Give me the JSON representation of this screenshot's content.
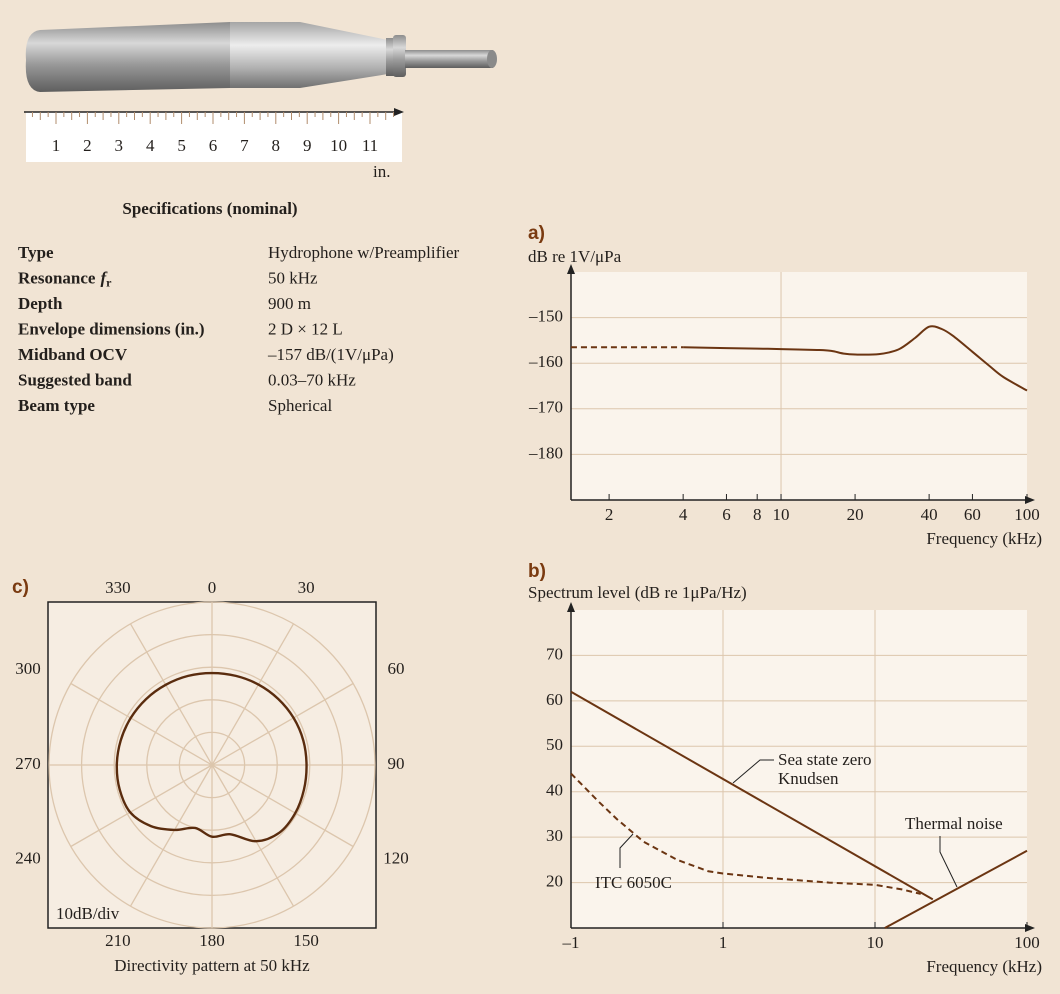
{
  "ruler": {
    "ticks": [
      1,
      2,
      3,
      4,
      5,
      6,
      7,
      8,
      9,
      10,
      11
    ],
    "unit": "in."
  },
  "specs": {
    "title": "Specifications (nominal)",
    "rows": [
      {
        "label": "Type",
        "value": "Hydrophone w/Preamplifier"
      },
      {
        "label": "Resonance",
        "symbol": "f",
        "subscript": "r",
        "value": "50 kHz"
      },
      {
        "label": "Depth",
        "value": "900 m"
      },
      {
        "label": "Envelope dimensions (in.)",
        "value": "2 D × 12 L"
      },
      {
        "label": "Midband OCV",
        "value": "–157 dB/(1V/μPa)"
      },
      {
        "label": "Suggested band",
        "value": "0.03–70 kHz"
      },
      {
        "label": "Beam type",
        "value": "Spherical"
      }
    ]
  },
  "chart_data": [
    {
      "type": "line",
      "panel": "a)",
      "ylabel": "dB re 1V/μPa",
      "xlabel": "Frequency (kHz)",
      "xscale": "log",
      "xlim": [
        1.4,
        100
      ],
      "xticks": [
        2,
        4,
        6,
        8,
        10,
        20,
        40,
        60,
        100
      ],
      "xgrid": [
        10
      ],
      "ylim": [
        -190,
        -140
      ],
      "yticks": [
        {
          "value": -150,
          "label": "–150"
        },
        {
          "value": -160,
          "label": "–160"
        },
        {
          "value": -170,
          "label": "–170"
        },
        {
          "value": -180,
          "label": "–180"
        }
      ],
      "grid": true,
      "series": [
        {
          "color": "#6b3512",
          "dashed": true,
          "x": [
            1.4,
            2,
            3,
            4
          ],
          "values": [
            -156.5,
            -156.5,
            -156.5,
            -156.5
          ]
        },
        {
          "color": "#6b3512",
          "dashed": false,
          "x": [
            4,
            6,
            8,
            10,
            14,
            16,
            18,
            20,
            25,
            30,
            35,
            40,
            45,
            50,
            60,
            70,
            80,
            100
          ],
          "values": [
            -156.5,
            -156.7,
            -156.8,
            -156.9,
            -157.1,
            -157.3,
            -157.9,
            -158.1,
            -158,
            -157,
            -154.5,
            -152,
            -152.5,
            -154,
            -157.5,
            -160.5,
            -163,
            -166
          ]
        }
      ]
    },
    {
      "type": "line",
      "panel": "b)",
      "ylabel": "Spectrum level (dB re 1μPa/Hz)",
      "xlabel": "Frequency (kHz)",
      "xscale": "log",
      "xlim": [
        0.1,
        100
      ],
      "xticks": [
        {
          "value": 0.1,
          "label": "–1"
        },
        1,
        10,
        100
      ],
      "xgrid": [
        1,
        10
      ],
      "ylim": [
        10,
        80
      ],
      "yticks": [
        20,
        30,
        40,
        50,
        60,
        70
      ],
      "grid": true,
      "series": [
        {
          "color": "#6b3512",
          "dashed": false,
          "x": [
            0.1,
            24
          ],
          "values": [
            62,
            16.3
          ]
        },
        {
          "color": "#6b3512",
          "dashed": false,
          "x": [
            11.6,
            100
          ],
          "values": [
            10,
            27
          ]
        },
        {
          "color": "#6b3512",
          "dashed": true,
          "x": [
            0.1,
            0.15,
            0.2,
            0.3,
            0.5,
            0.8,
            1,
            2,
            5,
            10,
            15,
            20
          ],
          "values": [
            44,
            38,
            34,
            29,
            25,
            22.5,
            22,
            21,
            20,
            19.5,
            18.5,
            17.5
          ]
        }
      ],
      "annotations": [
        {
          "lines": [
            "Sea state zero",
            "Knudsen"
          ]
        },
        {
          "lines": [
            "Thermal noise"
          ]
        },
        {
          "lines": [
            "ITC 6050C"
          ]
        }
      ]
    },
    {
      "type": "polar",
      "panel": "c)",
      "xlabel": "Directivity pattern at 50 kHz",
      "scale_label": "10dB/div",
      "angle_ticks": [
        0,
        30,
        60,
        90,
        120,
        150,
        180,
        210,
        240,
        270,
        300,
        330
      ],
      "rlim": [
        0,
        50
      ],
      "rticks": [
        10,
        20,
        30,
        40,
        50
      ],
      "series": [
        {
          "color": "#5a2c0e",
          "theta": [
            0,
            15,
            30,
            45,
            60,
            75,
            90,
            105,
            120,
            135,
            150,
            165,
            180,
            195,
            210,
            225,
            240,
            255,
            270,
            285,
            300,
            315,
            330,
            345
          ],
          "values": [
            28.2,
            28.3,
            28.5,
            28.7,
            28.9,
            29,
            29,
            29.2,
            29.5,
            29.3,
            27,
            22,
            22,
            20,
            23,
            26.5,
            29,
            29.3,
            29.2,
            29,
            28.8,
            28.6,
            28.4,
            28.3
          ]
        }
      ]
    }
  ]
}
